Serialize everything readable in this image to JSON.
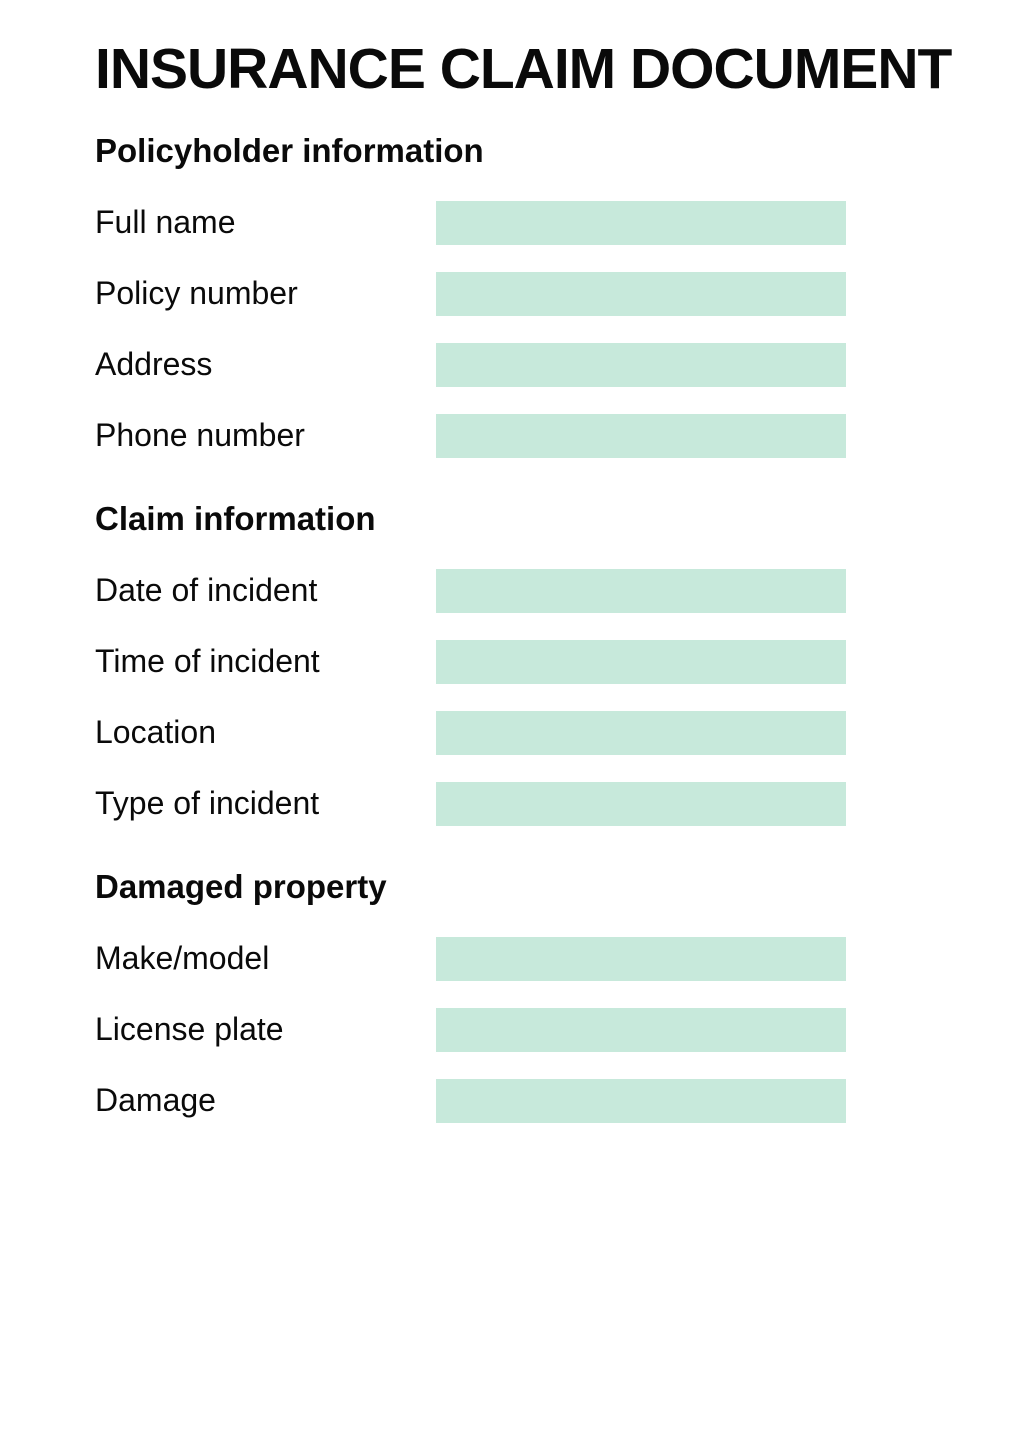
{
  "document": {
    "title": "INSURANCE CLAIM DOCUMENT",
    "sections": [
      {
        "heading": "Policyholder information",
        "fields": [
          {
            "label": "Full name",
            "name": "full-name",
            "value": ""
          },
          {
            "label": "Policy number",
            "name": "policy-number",
            "value": ""
          },
          {
            "label": "Address",
            "name": "address",
            "value": ""
          },
          {
            "label": "Phone number",
            "name": "phone-number",
            "value": ""
          }
        ]
      },
      {
        "heading": "Claim information",
        "fields": [
          {
            "label": "Date of incident",
            "name": "date-of-incident",
            "value": ""
          },
          {
            "label": "Time of incident",
            "name": "time-of-incident",
            "value": ""
          },
          {
            "label": "Location",
            "name": "location",
            "value": ""
          },
          {
            "label": "Type of incident",
            "name": "type-of-incident",
            "value": ""
          }
        ]
      },
      {
        "heading": "Damaged property",
        "fields": [
          {
            "label": "Make/model",
            "name": "make-model",
            "value": ""
          },
          {
            "label": "License plate",
            "name": "license-plate",
            "value": ""
          },
          {
            "label": "Damage",
            "name": "damage",
            "value": ""
          }
        ]
      }
    ],
    "colors": {
      "field_background": "#c7e9db",
      "page_background": "#ffffff",
      "text": "#0a0a0a"
    }
  }
}
